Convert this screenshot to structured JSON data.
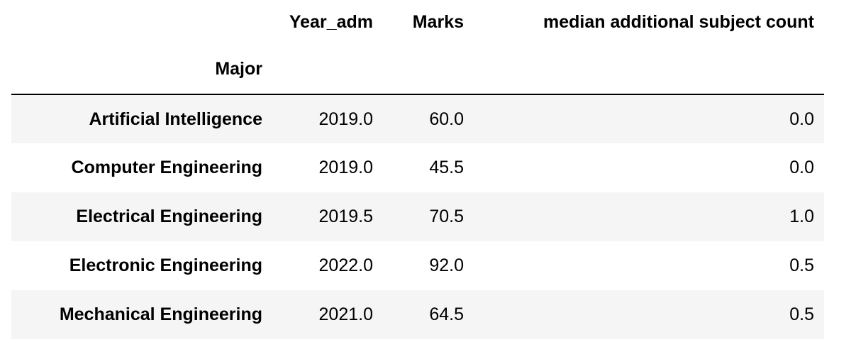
{
  "table": {
    "index_name": "Major",
    "columns": [
      "Year_adm",
      "Marks",
      "median additional subject count"
    ],
    "rows": [
      {
        "major": "Artificial Intelligence",
        "year_adm": "2019.0",
        "marks": "60.0",
        "median_additional_subject_count": "0.0"
      },
      {
        "major": "Computer Engineering",
        "year_adm": "2019.0",
        "marks": "45.5",
        "median_additional_subject_count": "0.0"
      },
      {
        "major": "Electrical Engineering",
        "year_adm": "2019.5",
        "marks": "70.5",
        "median_additional_subject_count": "1.0"
      },
      {
        "major": "Electronic Engineering",
        "year_adm": "2022.0",
        "marks": "92.0",
        "median_additional_subject_count": "0.5"
      },
      {
        "major": "Mechanical Engineering",
        "year_adm": "2021.0",
        "marks": "64.5",
        "median_additional_subject_count": "0.5"
      }
    ]
  },
  "colors": {
    "row_stripe": "#f5f5f5",
    "background": "#ffffff",
    "text": "#000000",
    "header_rule": "#000000"
  }
}
